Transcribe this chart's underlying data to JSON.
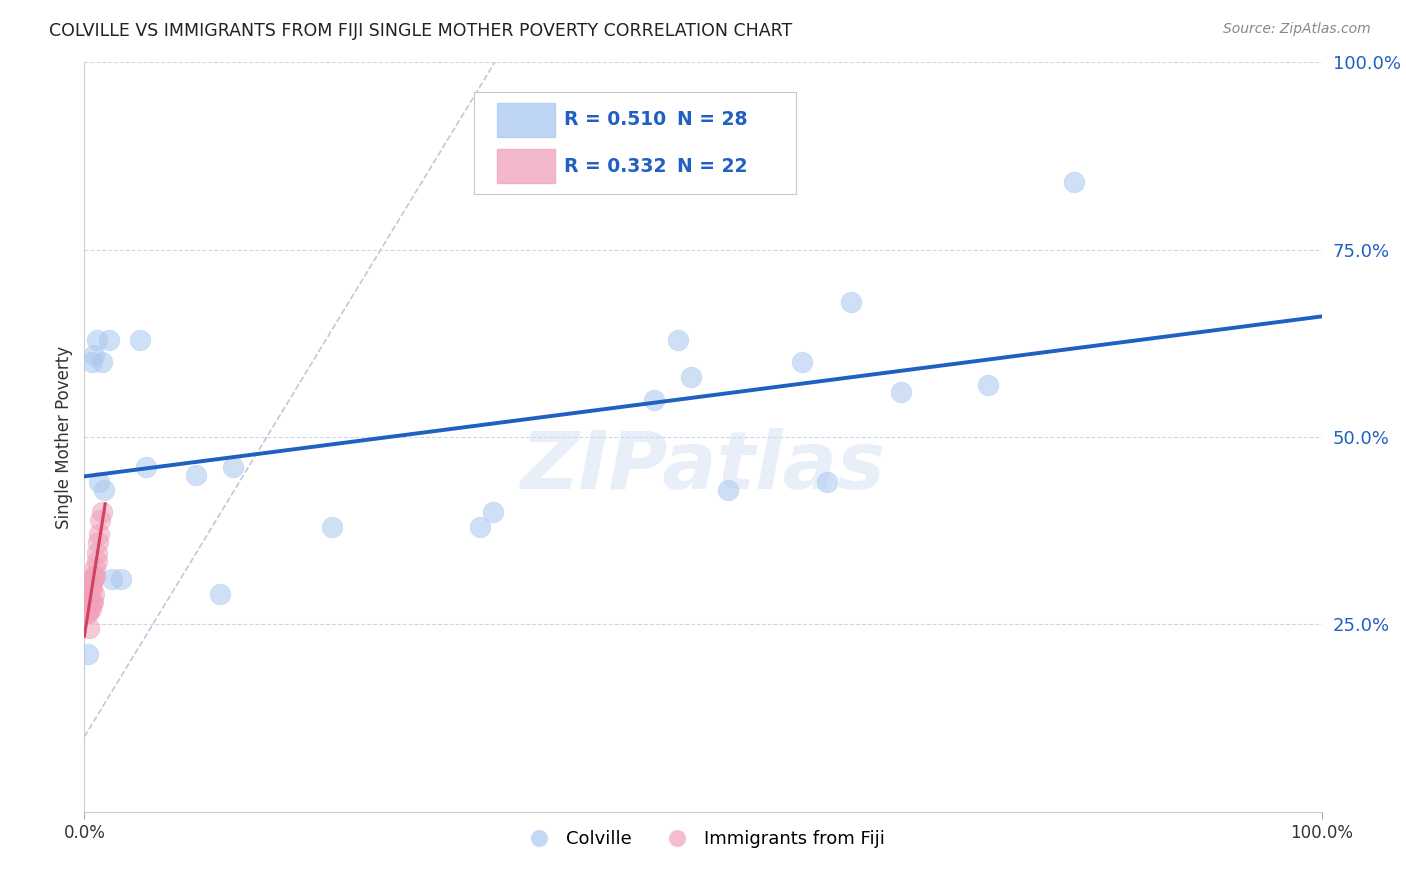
{
  "title": "COLVILLE VS IMMIGRANTS FROM FIJI SINGLE MOTHER POVERTY CORRELATION CHART",
  "source": "Source: ZipAtlas.com",
  "ylabel": "Single Mother Poverty",
  "xlim": [
    0,
    1.0
  ],
  "ylim": [
    0,
    1.0
  ],
  "ytick_labels": [
    "25.0%",
    "50.0%",
    "75.0%",
    "100.0%"
  ],
  "ytick_positions": [
    0.25,
    0.5,
    0.75,
    1.0
  ],
  "legend_r1": "0.510",
  "legend_n1": "28",
  "legend_r2": "0.332",
  "legend_n2": "22",
  "legend_label1": "Colville",
  "legend_label2": "Immigrants from Fiji",
  "blue_scatter_color": "#a8c8f0",
  "pink_scatter_color": "#f0a0b8",
  "blue_line_color": "#2060c0",
  "pink_line_color": "#d04060",
  "ref_line_color": "#c0c8d8",
  "watermark": "ZIPatlas",
  "colville_x": [
    0.003,
    0.006,
    0.008,
    0.01,
    0.012,
    0.014,
    0.016,
    0.02,
    0.022,
    0.03,
    0.045,
    0.05,
    0.09,
    0.11,
    0.12,
    0.2,
    0.32,
    0.33,
    0.46,
    0.48,
    0.49,
    0.52,
    0.58,
    0.6,
    0.62,
    0.66,
    0.73,
    0.8
  ],
  "colville_y": [
    0.21,
    0.6,
    0.61,
    0.63,
    0.44,
    0.6,
    0.43,
    0.63,
    0.31,
    0.31,
    0.63,
    0.46,
    0.45,
    0.29,
    0.46,
    0.38,
    0.38,
    0.4,
    0.55,
    0.63,
    0.58,
    0.43,
    0.6,
    0.44,
    0.68,
    0.56,
    0.57,
    0.84
  ],
  "fiji_x": [
    0.001,
    0.002,
    0.003,
    0.003,
    0.004,
    0.004,
    0.005,
    0.005,
    0.006,
    0.006,
    0.007,
    0.007,
    0.008,
    0.008,
    0.009,
    0.009,
    0.01,
    0.01,
    0.011,
    0.012,
    0.013,
    0.014
  ],
  "fiji_y": [
    0.295,
    0.265,
    0.265,
    0.28,
    0.245,
    0.27,
    0.27,
    0.3,
    0.28,
    0.3,
    0.28,
    0.31,
    0.315,
    0.29,
    0.315,
    0.325,
    0.335,
    0.345,
    0.36,
    0.37,
    0.39,
    0.4
  ]
}
